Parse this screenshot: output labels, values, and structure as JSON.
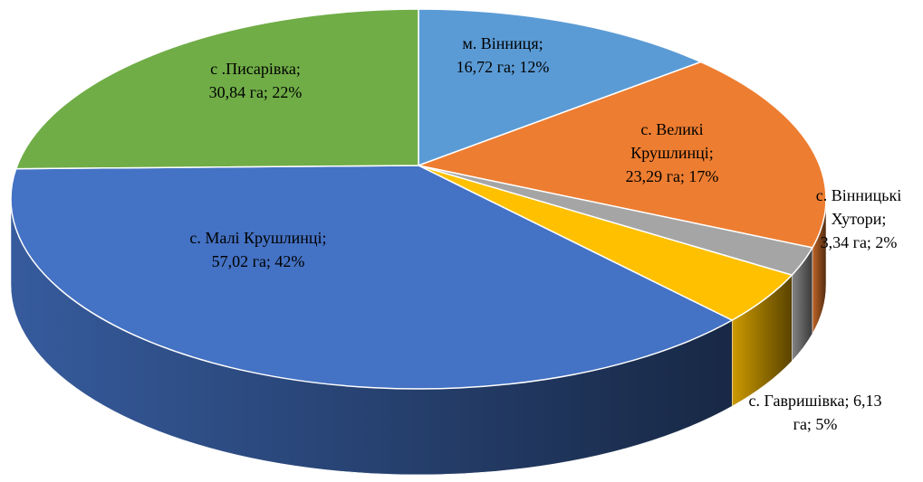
{
  "chart_data": {
    "type": "pie3d",
    "values": [
      16.72,
      23.29,
      3.34,
      6.13,
      57.02,
      30.84
    ],
    "value_labels": [
      [
        "м. Вінниця;",
        "16,72 га; 12%"
      ],
      [
        "с. Великі",
        "Крушлинці;",
        "23,29 га; 17%"
      ],
      [
        "с. Вінницькі",
        "Хутори;",
        "3,34 га; 2%"
      ],
      [
        "с. Гавришівка; 6,13",
        "га; 5%"
      ],
      [
        "с. Малі Крушлинці;",
        "57,02 га; 42%"
      ],
      [
        "с .Писарівка;",
        "30,84 га; 22%"
      ]
    ],
    "colors": [
      "#5b9bd5",
      "#ed7d31",
      "#a5a5a5",
      "#ffc000",
      "#4472c4",
      "#70ad47"
    ]
  }
}
